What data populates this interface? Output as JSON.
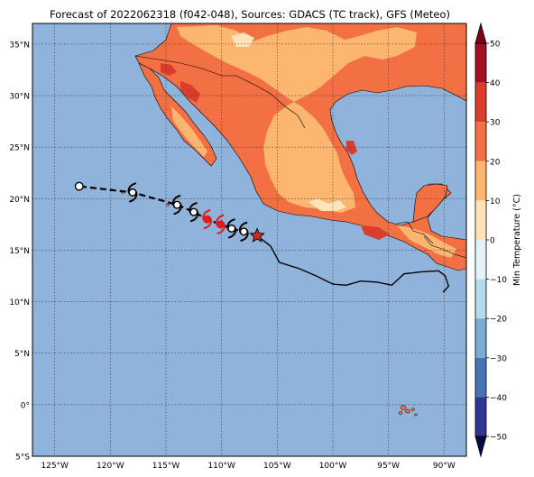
{
  "title": "Forecast of 2022062318 (f042-048), Sources: GDACS (TC track), GFS (Meteo)",
  "map": {
    "lon_range": [
      -127,
      -88
    ],
    "lat_range": [
      -5,
      37
    ],
    "lat_ticks": [
      {
        "value": 35,
        "label": "35°N"
      },
      {
        "value": 30,
        "label": "30°N"
      },
      {
        "value": 25,
        "label": "25°N"
      },
      {
        "value": 20,
        "label": "20°N"
      },
      {
        "value": 15,
        "label": "15°N"
      },
      {
        "value": 10,
        "label": "10°N"
      },
      {
        "value": 5,
        "label": "5°N"
      },
      {
        "value": 0,
        "label": "0°"
      },
      {
        "value": -5,
        "label": "5°S"
      }
    ],
    "lon_ticks": [
      {
        "value": -125,
        "label": "125°W"
      },
      {
        "value": -120,
        "label": "120°W"
      },
      {
        "value": -115,
        "label": "115°W"
      },
      {
        "value": -110,
        "label": "110°W"
      },
      {
        "value": -105,
        "label": "105°W"
      },
      {
        "value": -100,
        "label": "100°W"
      },
      {
        "value": -95,
        "label": "95°W"
      },
      {
        "value": -90,
        "label": "90°W"
      }
    ],
    "colors": {
      "ocean": "#8fb3da",
      "band_30_40": "#db3d2c",
      "band_20_30": "#f36f44",
      "band_10_20": "#fdb670",
      "band_0_10": "#fee4b8",
      "border": "#000000"
    },
    "track": {
      "past_line": "solid",
      "forecast_line": "dashed",
      "current_marker": "red-star",
      "observed_path": [
        {
          "lon": -106.8,
          "lat": 16.4
        },
        {
          "lon": -105.6,
          "lat": 15.4
        },
        {
          "lon": -104.8,
          "lat": 13.8
        },
        {
          "lon": -103.0,
          "lat": 13.2
        },
        {
          "lon": -101.5,
          "lat": 12.5
        },
        {
          "lon": -100.0,
          "lat": 11.7
        },
        {
          "lon": -98.8,
          "lat": 11.6
        },
        {
          "lon": -97.5,
          "lat": 12.0
        },
        {
          "lon": -96.0,
          "lat": 11.9
        },
        {
          "lon": -94.7,
          "lat": 11.6
        },
        {
          "lon": -93.6,
          "lat": 12.7
        },
        {
          "lon": -92.0,
          "lat": 12.9
        },
        {
          "lon": -90.5,
          "lat": 13.0
        },
        {
          "lon": -89.9,
          "lat": 12.5
        },
        {
          "lon": -89.6,
          "lat": 11.5
        },
        {
          "lon": -90.1,
          "lat": 10.9
        }
      ],
      "forecast_points": [
        {
          "lon": -106.8,
          "lat": 16.4,
          "symbol": "star",
          "color": "#d62728"
        },
        {
          "lon": -108.0,
          "lat": 16.8,
          "symbol": "hurricane",
          "color": "#000000"
        },
        {
          "lon": -109.1,
          "lat": 17.1,
          "symbol": "hurricane",
          "color": "#000000"
        },
        {
          "lon": -110.1,
          "lat": 17.5,
          "symbol": "hurricane",
          "color": "#e31a1c"
        },
        {
          "lon": -111.3,
          "lat": 18.0,
          "symbol": "hurricane",
          "color": "#e31a1c"
        },
        {
          "lon": -112.5,
          "lat": 18.7,
          "symbol": "hurricane",
          "color": "#000000"
        },
        {
          "lon": -114.0,
          "lat": 19.4,
          "symbol": "hurricane",
          "color": "#000000"
        },
        {
          "lon": -118.0,
          "lat": 20.6,
          "symbol": "hurricane",
          "color": "#000000"
        },
        {
          "lon": -122.8,
          "lat": 21.2,
          "symbol": "circle",
          "color": "#ffffff"
        }
      ]
    }
  },
  "colorbar": {
    "label": "Min Temperature (°C)",
    "ticks": [
      {
        "value": 50,
        "label": "50"
      },
      {
        "value": 40,
        "label": "40"
      },
      {
        "value": 30,
        "label": "30"
      },
      {
        "value": 20,
        "label": "20"
      },
      {
        "value": 10,
        "label": "10"
      },
      {
        "value": 0,
        "label": "0"
      },
      {
        "value": -10,
        "label": "−10"
      },
      {
        "value": -20,
        "label": "−20"
      },
      {
        "value": -30,
        "label": "−30"
      },
      {
        "value": -40,
        "label": "−40"
      },
      {
        "value": -50,
        "label": "−50"
      }
    ],
    "bands": [
      {
        "from": 40,
        "to": 50,
        "color": "#a50f26"
      },
      {
        "from": 30,
        "to": 40,
        "color": "#db3d2c"
      },
      {
        "from": 20,
        "to": 30,
        "color": "#f36f44"
      },
      {
        "from": 10,
        "to": 20,
        "color": "#fdb670"
      },
      {
        "from": 0,
        "to": 10,
        "color": "#fee4b8"
      },
      {
        "from": -10,
        "to": 0,
        "color": "#e3f3f8"
      },
      {
        "from": -20,
        "to": -10,
        "color": "#b3dbeb"
      },
      {
        "from": -30,
        "to": -20,
        "color": "#78add1"
      },
      {
        "from": -40,
        "to": -30,
        "color": "#4575b4"
      },
      {
        "from": -50,
        "to": -40,
        "color": "#313695"
      }
    ],
    "arrow_top_color": "#7a0020",
    "arrow_bottom_color": "#0a0a40"
  }
}
